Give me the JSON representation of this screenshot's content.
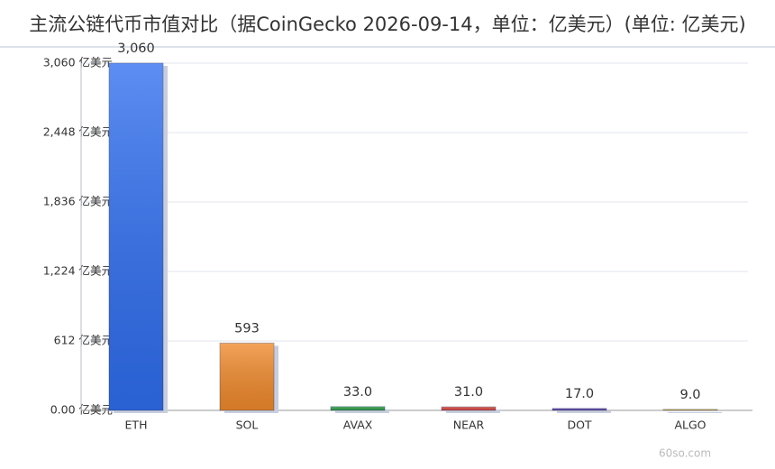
{
  "chart_data": {
    "type": "bar",
    "title": "主流公链代币市值对比（据CoinGecko 2026-09-14，单位：亿美元）(单位: 亿美元)",
    "categories": [
      "ETH",
      "SOL",
      "AVAX",
      "NEAR",
      "DOT",
      "ALGO"
    ],
    "values": [
      3060,
      593,
      33,
      31,
      17,
      9
    ],
    "value_labels": [
      "3,060",
      "593",
      "33.0",
      "31.0",
      "17.0",
      "9.0"
    ],
    "colors": [
      "#2f6ef0",
      "#f08a2c",
      "#2e9e46",
      "#d9443c",
      "#5b3fa8",
      "#e8b830"
    ],
    "ylim": [
      0,
      3060
    ],
    "yticks": [
      {
        "value": 0,
        "label": "0.00 亿美元"
      },
      {
        "value": 612,
        "label": "612 亿美元"
      },
      {
        "value": 1224,
        "label": "1,224 亿美元"
      },
      {
        "value": 1836,
        "label": "1,836 亿美元"
      },
      {
        "value": 2448,
        "label": "2,448 亿美元"
      },
      {
        "value": 3060,
        "label": "3,060 亿美元"
      }
    ],
    "grid": true,
    "watermark": "60so.com"
  }
}
